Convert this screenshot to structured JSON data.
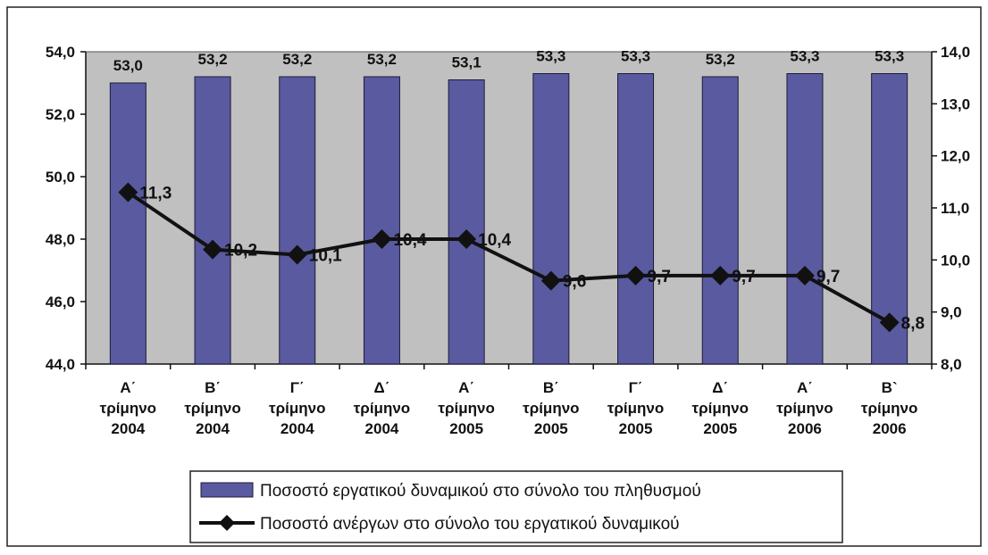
{
  "chart_data": {
    "type": "bar",
    "categories": [
      [
        "Α΄",
        "τρίμηνο",
        "2004"
      ],
      [
        "Β΄",
        "τρίμηνο",
        "2004"
      ],
      [
        "Γ΄",
        "τρίμηνο",
        "2004"
      ],
      [
        "Δ΄",
        "τρίμηνο",
        "2004"
      ],
      [
        "Α΄",
        "τρίμηνο",
        "2005"
      ],
      [
        "Β΄",
        "τρίμηνο",
        "2005"
      ],
      [
        "Γ΄",
        "τρίμηνο",
        "2005"
      ],
      [
        "Δ΄",
        "τρίμηνο",
        "2005"
      ],
      [
        "Α΄",
        "τρίμηνο",
        "2006"
      ],
      [
        "Β`",
        "τρίμηνο",
        "2006"
      ]
    ],
    "series": [
      {
        "name": "Ποσοστό  εργατικού δυναμικού στο σύνολο του πληθυσμού",
        "type": "bar",
        "axis": "left",
        "values": [
          53.0,
          53.2,
          53.2,
          53.2,
          53.1,
          53.3,
          53.3,
          53.2,
          53.3,
          53.3
        ],
        "labels": [
          "53,0",
          "53,2",
          "53,2",
          "53,2",
          "53,1",
          "53,3",
          "53,3",
          "53,2",
          "53,3",
          "53,3"
        ],
        "color": "#5a5aa0"
      },
      {
        "name": "Ποσοστό ανέργων στο σύνολο του εργατικού δυναμικού",
        "type": "line",
        "axis": "right",
        "values": [
          11.3,
          10.2,
          10.1,
          10.4,
          10.4,
          9.6,
          9.7,
          9.7,
          9.7,
          8.8
        ],
        "labels": [
          "11,3",
          "10,2",
          "10,1",
          "10,4",
          "10,4",
          "9,6",
          "9,7",
          "9,7",
          "9,7",
          "8,8"
        ],
        "color": "#111111"
      }
    ],
    "y_left": {
      "ylim": [
        44.0,
        54.0
      ],
      "ticks": [
        44.0,
        46.0,
        48.0,
        50.0,
        52.0,
        54.0
      ],
      "tick_labels": [
        "44,0",
        "46,0",
        "48,0",
        "50,0",
        "52,0",
        "54,0"
      ]
    },
    "y_right": {
      "ylim": [
        8.0,
        14.0
      ],
      "ticks": [
        8.0,
        9.0,
        10.0,
        11.0,
        12.0,
        13.0,
        14.0
      ],
      "tick_labels": [
        "8,0",
        "9,0",
        "10,0",
        "11,0",
        "12,0",
        "13,0",
        "14,0"
      ]
    },
    "plot_background": "#c0c0c0",
    "legend_position": "bottom",
    "grid": false
  }
}
